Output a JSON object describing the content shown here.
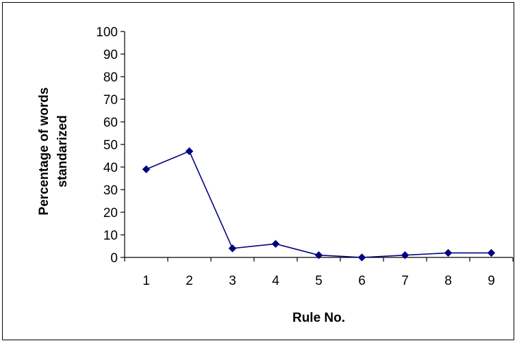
{
  "chart_data": {
    "type": "line",
    "title": "",
    "xlabel": "Rule No.",
    "ylabel_lines": [
      "Percentage of words",
      "standarized"
    ],
    "categories": [
      "1",
      "2",
      "3",
      "4",
      "5",
      "6",
      "7",
      "8",
      "9"
    ],
    "series": [
      {
        "values": [
          39,
          47,
          4,
          6,
          1,
          0,
          1,
          2,
          2
        ],
        "color": "#000080",
        "marker": "diamond"
      }
    ],
    "ylim": [
      0,
      100
    ],
    "yticks": [
      "0",
      "10",
      "20",
      "30",
      "40",
      "50",
      "60",
      "70",
      "80",
      "90",
      "100"
    ],
    "grid": false,
    "legend": "none"
  }
}
